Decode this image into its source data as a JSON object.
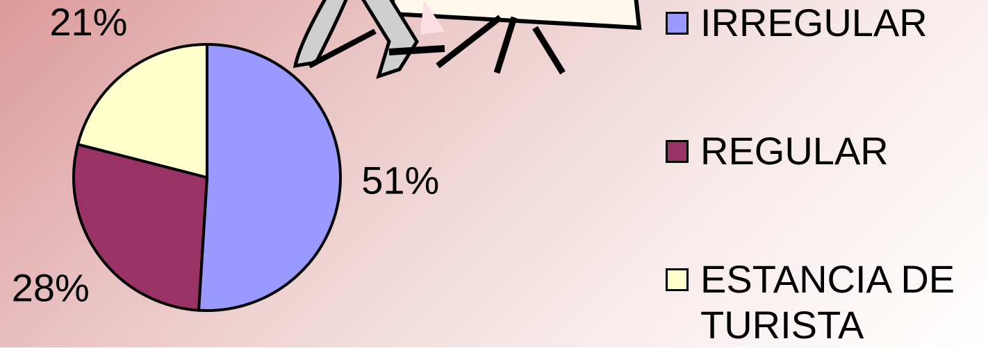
{
  "chart_data": {
    "type": "pie",
    "categories": [
      "IRREGULAR",
      "REGULAR",
      "ESTANCIA DE TURISTA"
    ],
    "values": [
      51,
      28,
      21
    ],
    "value_labels": [
      "51%",
      "28%",
      "21%"
    ],
    "colors": [
      "#9999ff",
      "#993366",
      "#ffffcc"
    ],
    "legend": "right"
  }
}
